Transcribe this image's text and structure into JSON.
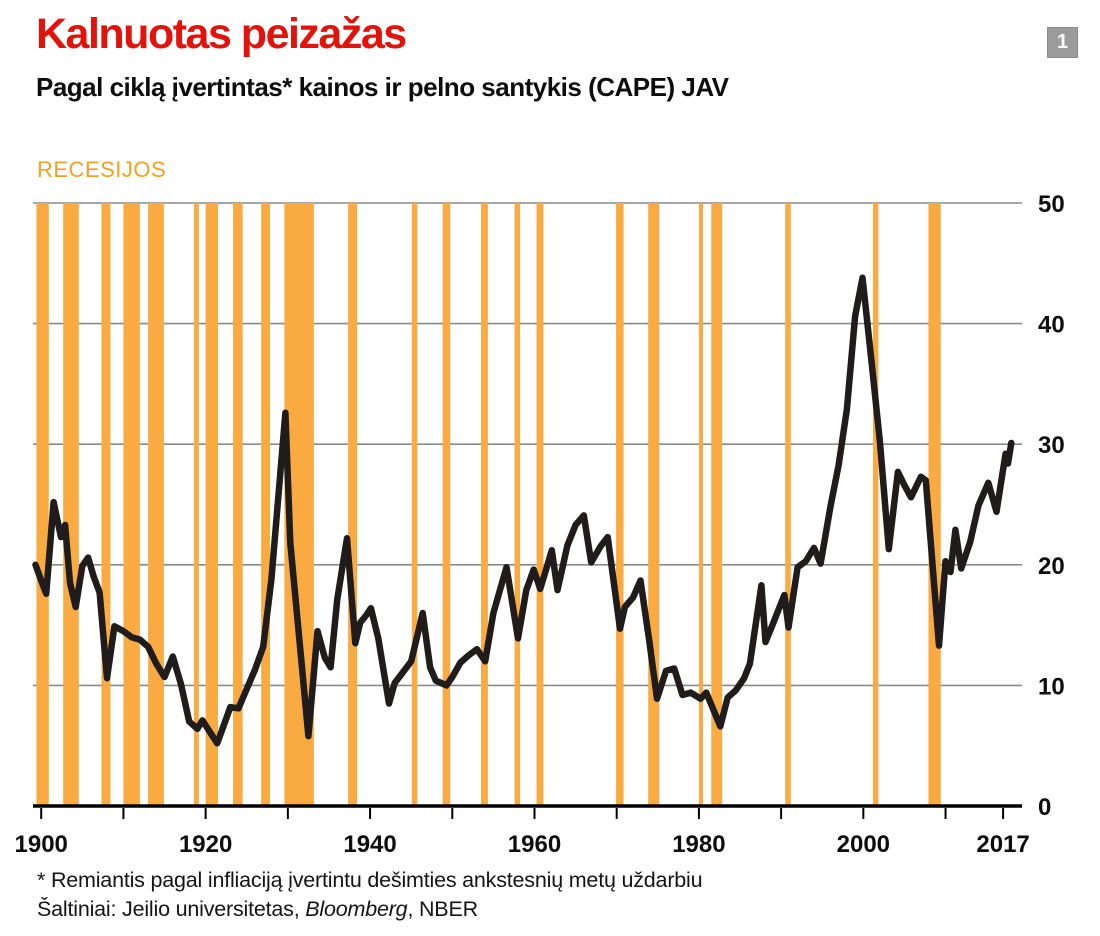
{
  "header": {
    "title": "Kalnuotas peizažas",
    "subtitle": "Pagal ciklą įvertintas* kainos ir pelno santykis (CAPE) JAV",
    "badge": "1"
  },
  "legend": {
    "recessions_label": "RECESIJOS"
  },
  "footer": {
    "footnote": "* Remiantis pagal infliaciją įvertintu dešimties ankstesnių metų uždarbiu",
    "sources_prefix": "Šaltiniai: Jeilio universitetas, ",
    "sources_italic": "Bloomberg",
    "sources_suffix": ", NBER"
  },
  "colors": {
    "accent_red": "#e3120b",
    "recession_orange": "#f9ab42",
    "recessions_label_orange": "#f5a01e",
    "line_black": "#1f1c1b",
    "gridline_gray": "#8a8a8a",
    "axis_black": "#000000",
    "badge_gray": "#9b9b9b",
    "text_black": "#0d0d0d"
  },
  "chart_data": {
    "type": "line",
    "title": "Kalnuotas peizažas",
    "subtitle": "Pagal ciklą įvertintas* kainos ir pelno santykis (CAPE) JAV",
    "xlabel": "",
    "ylabel": "",
    "x_domain": [
      1899.0,
      2019.3
    ],
    "ylim": [
      0,
      50
    ],
    "y_ticks": [
      0,
      10,
      20,
      30,
      40,
      50
    ],
    "y_tick_side": "right",
    "grid": "horizontal",
    "x_tick_years": [
      1900,
      1910,
      1920,
      1930,
      1940,
      1950,
      1960,
      1970,
      1980,
      1990,
      2000,
      2010,
      2017
    ],
    "x_labeled_ticks": [
      {
        "year": 1900,
        "label": "1900"
      },
      {
        "year": 1920,
        "label": "1920"
      },
      {
        "year": 1940,
        "label": "1940"
      },
      {
        "year": 1960,
        "label": "1960"
      },
      {
        "year": 1980,
        "label": "1980"
      },
      {
        "year": 2000,
        "label": "2000"
      },
      {
        "year": 2017,
        "label": "2017"
      }
    ],
    "recessions_label": "RECESIJOS",
    "recessions": [
      [
        1899.42,
        1900.92
      ],
      [
        1902.67,
        1904.58
      ],
      [
        1907.33,
        1908.42
      ],
      [
        1910.0,
        1912.0
      ],
      [
        1913.0,
        1914.92
      ],
      [
        1918.58,
        1919.17
      ],
      [
        1920.0,
        1921.5
      ],
      [
        1923.33,
        1924.5
      ],
      [
        1926.75,
        1927.83
      ],
      [
        1929.58,
        1933.17
      ],
      [
        1937.33,
        1938.42
      ],
      [
        1945.08,
        1945.75
      ],
      [
        1948.83,
        1949.75
      ],
      [
        1953.5,
        1954.33
      ],
      [
        1957.58,
        1958.25
      ],
      [
        1960.25,
        1961.08
      ],
      [
        1969.92,
        1970.83
      ],
      [
        1973.83,
        1975.17
      ],
      [
        1980.0,
        1980.5
      ],
      [
        1981.5,
        1982.83
      ],
      [
        1990.5,
        1991.17
      ],
      [
        2001.17,
        2001.83
      ],
      [
        2007.92,
        2009.42
      ]
    ],
    "series": [
      {
        "name": "CAPE (JAV)",
        "points": [
          [
            1899.3,
            20.0
          ],
          [
            1900.0,
            18.7
          ],
          [
            1900.6,
            17.6
          ],
          [
            1901.5,
            25.2
          ],
          [
            1902.4,
            22.3
          ],
          [
            1902.9,
            23.3
          ],
          [
            1903.5,
            18.5
          ],
          [
            1904.2,
            16.5
          ],
          [
            1905.0,
            19.9
          ],
          [
            1905.7,
            20.6
          ],
          [
            1906.4,
            19.0
          ],
          [
            1907.1,
            17.7
          ],
          [
            1908.0,
            10.6
          ],
          [
            1908.9,
            14.9
          ],
          [
            1910.0,
            14.5
          ],
          [
            1911.0,
            14.0
          ],
          [
            1912.0,
            13.8
          ],
          [
            1913.0,
            13.2
          ],
          [
            1914.0,
            11.8
          ],
          [
            1915.0,
            10.7
          ],
          [
            1916.0,
            12.4
          ],
          [
            1917.0,
            10.1
          ],
          [
            1918.0,
            7.0
          ],
          [
            1919.0,
            6.4
          ],
          [
            1919.6,
            7.1
          ],
          [
            1921.4,
            5.2
          ],
          [
            1922.0,
            6.3
          ],
          [
            1923.0,
            8.2
          ],
          [
            1924.0,
            8.1
          ],
          [
            1925.0,
            9.7
          ],
          [
            1926.0,
            11.3
          ],
          [
            1927.0,
            13.2
          ],
          [
            1928.0,
            18.8
          ],
          [
            1929.7,
            32.6
          ],
          [
            1930.3,
            21.8
          ],
          [
            1931.0,
            16.7
          ],
          [
            1932.5,
            5.8
          ],
          [
            1933.6,
            14.5
          ],
          [
            1934.5,
            12.3
          ],
          [
            1935.2,
            11.5
          ],
          [
            1936.0,
            17.1
          ],
          [
            1937.2,
            22.2
          ],
          [
            1938.2,
            13.5
          ],
          [
            1938.8,
            15.2
          ],
          [
            1939.5,
            15.8
          ],
          [
            1940.1,
            16.4
          ],
          [
            1941.0,
            13.9
          ],
          [
            1942.3,
            8.5
          ],
          [
            1943.0,
            10.2
          ],
          [
            1944.0,
            11.1
          ],
          [
            1945.0,
            12.0
          ],
          [
            1946.4,
            16.0
          ],
          [
            1947.3,
            11.5
          ],
          [
            1948.0,
            10.4
          ],
          [
            1949.3,
            10.0
          ],
          [
            1950.0,
            10.7
          ],
          [
            1951.0,
            11.9
          ],
          [
            1952.0,
            12.5
          ],
          [
            1953.0,
            13.0
          ],
          [
            1954.0,
            12.0
          ],
          [
            1955.0,
            16.0
          ],
          [
            1956.6,
            19.8
          ],
          [
            1958.0,
            13.9
          ],
          [
            1959.0,
            17.9
          ],
          [
            1959.9,
            19.6
          ],
          [
            1960.7,
            18.0
          ],
          [
            1961.5,
            19.8
          ],
          [
            1962.1,
            21.2
          ],
          [
            1962.8,
            17.9
          ],
          [
            1964.0,
            21.6
          ],
          [
            1965.0,
            23.3
          ],
          [
            1966.0,
            24.1
          ],
          [
            1966.9,
            20.2
          ],
          [
            1968.0,
            21.5
          ],
          [
            1968.9,
            22.3
          ],
          [
            1970.4,
            14.7
          ],
          [
            1971.0,
            16.5
          ],
          [
            1972.0,
            17.3
          ],
          [
            1972.9,
            18.7
          ],
          [
            1974.0,
            13.5
          ],
          [
            1974.9,
            8.9
          ],
          [
            1976.0,
            11.2
          ],
          [
            1977.0,
            11.4
          ],
          [
            1978.0,
            9.2
          ],
          [
            1979.0,
            9.4
          ],
          [
            1980.2,
            8.9
          ],
          [
            1980.9,
            9.4
          ],
          [
            1982.6,
            6.6
          ],
          [
            1983.5,
            9.0
          ],
          [
            1984.5,
            9.6
          ],
          [
            1985.5,
            10.6
          ],
          [
            1986.2,
            11.8
          ],
          [
            1987.6,
            18.3
          ],
          [
            1988.1,
            13.6
          ],
          [
            1989.0,
            15.1
          ],
          [
            1990.4,
            17.5
          ],
          [
            1990.9,
            14.8
          ],
          [
            1992.0,
            19.8
          ],
          [
            1993.0,
            20.3
          ],
          [
            1994.0,
            21.4
          ],
          [
            1994.8,
            20.1
          ],
          [
            1996.0,
            24.8
          ],
          [
            1997.0,
            28.3
          ],
          [
            1998.0,
            32.9
          ],
          [
            1999.0,
            40.6
          ],
          [
            1999.9,
            43.8
          ],
          [
            2001.0,
            36.8
          ],
          [
            2002.0,
            30.3
          ],
          [
            2003.1,
            21.3
          ],
          [
            2004.2,
            27.7
          ],
          [
            2005.0,
            26.6
          ],
          [
            2005.8,
            25.6
          ],
          [
            2007.0,
            27.3
          ],
          [
            2007.6,
            27.0
          ],
          [
            2009.2,
            13.3
          ],
          [
            2010.0,
            20.3
          ],
          [
            2010.6,
            19.4
          ],
          [
            2011.2,
            22.9
          ],
          [
            2011.9,
            19.7
          ],
          [
            2013.0,
            21.9
          ],
          [
            2014.0,
            24.9
          ],
          [
            2015.2,
            26.8
          ],
          [
            2016.2,
            24.4
          ],
          [
            2017.0,
            27.9
          ],
          [
            2017.3,
            29.2
          ],
          [
            2017.6,
            28.4
          ],
          [
            2018.0,
            30.1
          ]
        ]
      }
    ]
  }
}
